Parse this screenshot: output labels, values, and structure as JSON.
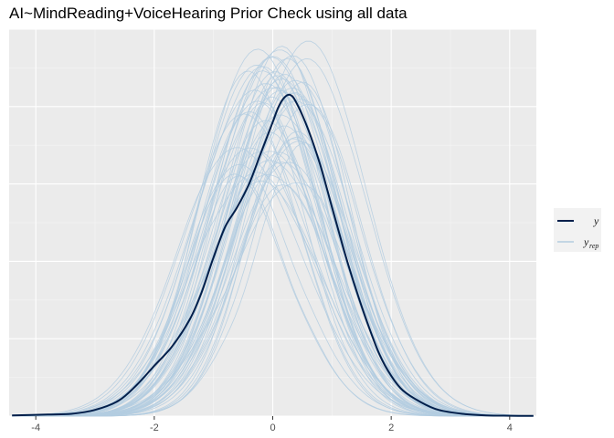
{
  "title": "AI~MindReading+VoiceHearing Prior Check using all data",
  "chart_data": {
    "type": "line",
    "title": "AI~MindReading+VoiceHearing Prior Check using all data",
    "xlabel": "",
    "ylabel": "",
    "xlim": [
      -4.45,
      4.45
    ],
    "ylim": [
      0,
      0.5
    ],
    "x_ticks": [
      "-4",
      "-2",
      "0",
      "2",
      "4"
    ],
    "x_tick_values": [
      -4,
      -2,
      0,
      2,
      4
    ],
    "grid": true,
    "y_tick_labels_shown": false,
    "legend_position": "right",
    "legend": [
      {
        "label": "y",
        "color": "#011f4b"
      },
      {
        "label": "y",
        "subscript": "rep",
        "color": "#b3cde0"
      }
    ],
    "series": [
      {
        "name": "y",
        "color": "#011f4b",
        "x": [
          -4.4,
          -3.8,
          -3.4,
          -3.0,
          -2.6,
          -2.3,
          -2.0,
          -1.7,
          -1.4,
          -1.2,
          -1.0,
          -0.8,
          -0.6,
          -0.4,
          -0.2,
          0.0,
          0.1,
          0.2,
          0.3,
          0.4,
          0.6,
          0.8,
          1.0,
          1.2,
          1.4,
          1.6,
          1.8,
          2.0,
          2.2,
          2.5,
          2.8,
          3.2,
          3.6,
          4.0,
          4.4
        ],
        "y": [
          0.001,
          0.002,
          0.003,
          0.008,
          0.02,
          0.04,
          0.065,
          0.09,
          0.125,
          0.16,
          0.205,
          0.245,
          0.27,
          0.3,
          0.34,
          0.38,
          0.4,
          0.412,
          0.415,
          0.405,
          0.37,
          0.325,
          0.27,
          0.215,
          0.165,
          0.12,
          0.08,
          0.052,
          0.033,
          0.018,
          0.008,
          0.003,
          0.001,
          0.0005,
          0.0002
        ]
      }
    ],
    "replicate_series": {
      "name": "y_rep",
      "color": "#b3cde0",
      "count": 60,
      "x_range": [
        -4.4,
        4.4
      ],
      "mean_range": [
        -0.45,
        0.5
      ],
      "sd_range": [
        0.82,
        1.08
      ],
      "peak_range": [
        0.29,
        0.475
      ]
    }
  }
}
